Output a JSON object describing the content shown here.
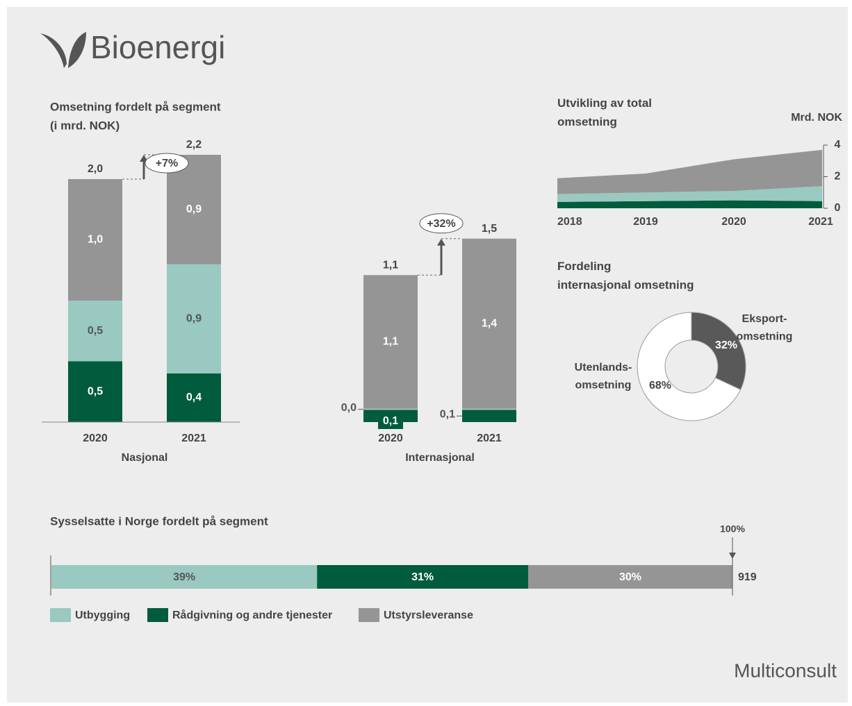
{
  "title": "Bioenergi",
  "brand": "Multiconsult",
  "chart_data": [
    {
      "type": "stacked-bar",
      "title": "Omsetning fordelt på segment",
      "subtitle": "(i mrd. NOK)",
      "categories": [
        "2020",
        "2021",
        "2020",
        "2021"
      ],
      "groups": [
        "Nasjonal",
        "Internasjonal"
      ],
      "series": [
        {
          "color": "#005c3c",
          "values": [
            0.5,
            0.4,
            0.1,
            0.1
          ],
          "value_labels": [
            "0,5",
            "0,4",
            "0,1",
            "0,1"
          ]
        },
        {
          "color": "#99c9c0",
          "values": [
            0.5,
            0.9,
            0.01,
            0.01
          ],
          "value_labels": [
            "0,5",
            "0,9",
            "0,0",
            null
          ]
        },
        {
          "color": "#959595",
          "values": [
            1.0,
            0.9,
            1.1,
            1.4
          ],
          "value_labels": [
            "1,0",
            "0,9",
            "1,1",
            "1,4"
          ]
        }
      ],
      "totals": [
        2.0,
        2.2,
        1.1,
        1.5
      ],
      "total_labels": [
        "2,0",
        "2,2",
        "1,1",
        "1,5"
      ],
      "annotations": [
        "+7%",
        "+32%"
      ]
    },
    {
      "type": "stacked-area",
      "title": "Utvikling av total\nomsetning",
      "y_label": "Mrd. NOK",
      "categories": [
        "2018",
        "2019",
        "2020",
        "2021"
      ],
      "series": [
        {
          "color": "#005c3c",
          "values": [
            0.4,
            0.45,
            0.5,
            0.45
          ]
        },
        {
          "color": "#99c9c0",
          "values": [
            0.5,
            0.55,
            0.6,
            0.95
          ]
        },
        {
          "color": "#959595",
          "values": [
            1.0,
            1.2,
            2.0,
            2.3
          ]
        }
      ],
      "ylim": [
        0,
        4
      ],
      "yticks": [
        0,
        2,
        4
      ]
    },
    {
      "type": "donut",
      "title": "Fordeling\ninternasjonal omsetning",
      "categories": [
        "Eksport-\nomsetning",
        "Utenlands-\nomsetning"
      ],
      "values": [
        32,
        68
      ],
      "value_labels": [
        "32%",
        "68%"
      ],
      "colors": [
        "#595959",
        "#ffffff"
      ]
    },
    {
      "type": "stacked-hbar",
      "title": "Sysselsatte i Norge fordelt på segment",
      "series": [
        {
          "name": "Utbygging",
          "color": "#99c9c0",
          "values": [
            39
          ],
          "value_labels": [
            "39%"
          ]
        },
        {
          "name": "Rådgivning og andre tjenester",
          "color": "#005c3c",
          "values": [
            31
          ],
          "value_labels": [
            "31%"
          ]
        },
        {
          "name": "Utstyrsleveranse",
          "color": "#959595",
          "values": [
            30
          ],
          "value_labels": [
            "30%"
          ]
        }
      ],
      "total": 919,
      "annotation": "100%"
    }
  ]
}
